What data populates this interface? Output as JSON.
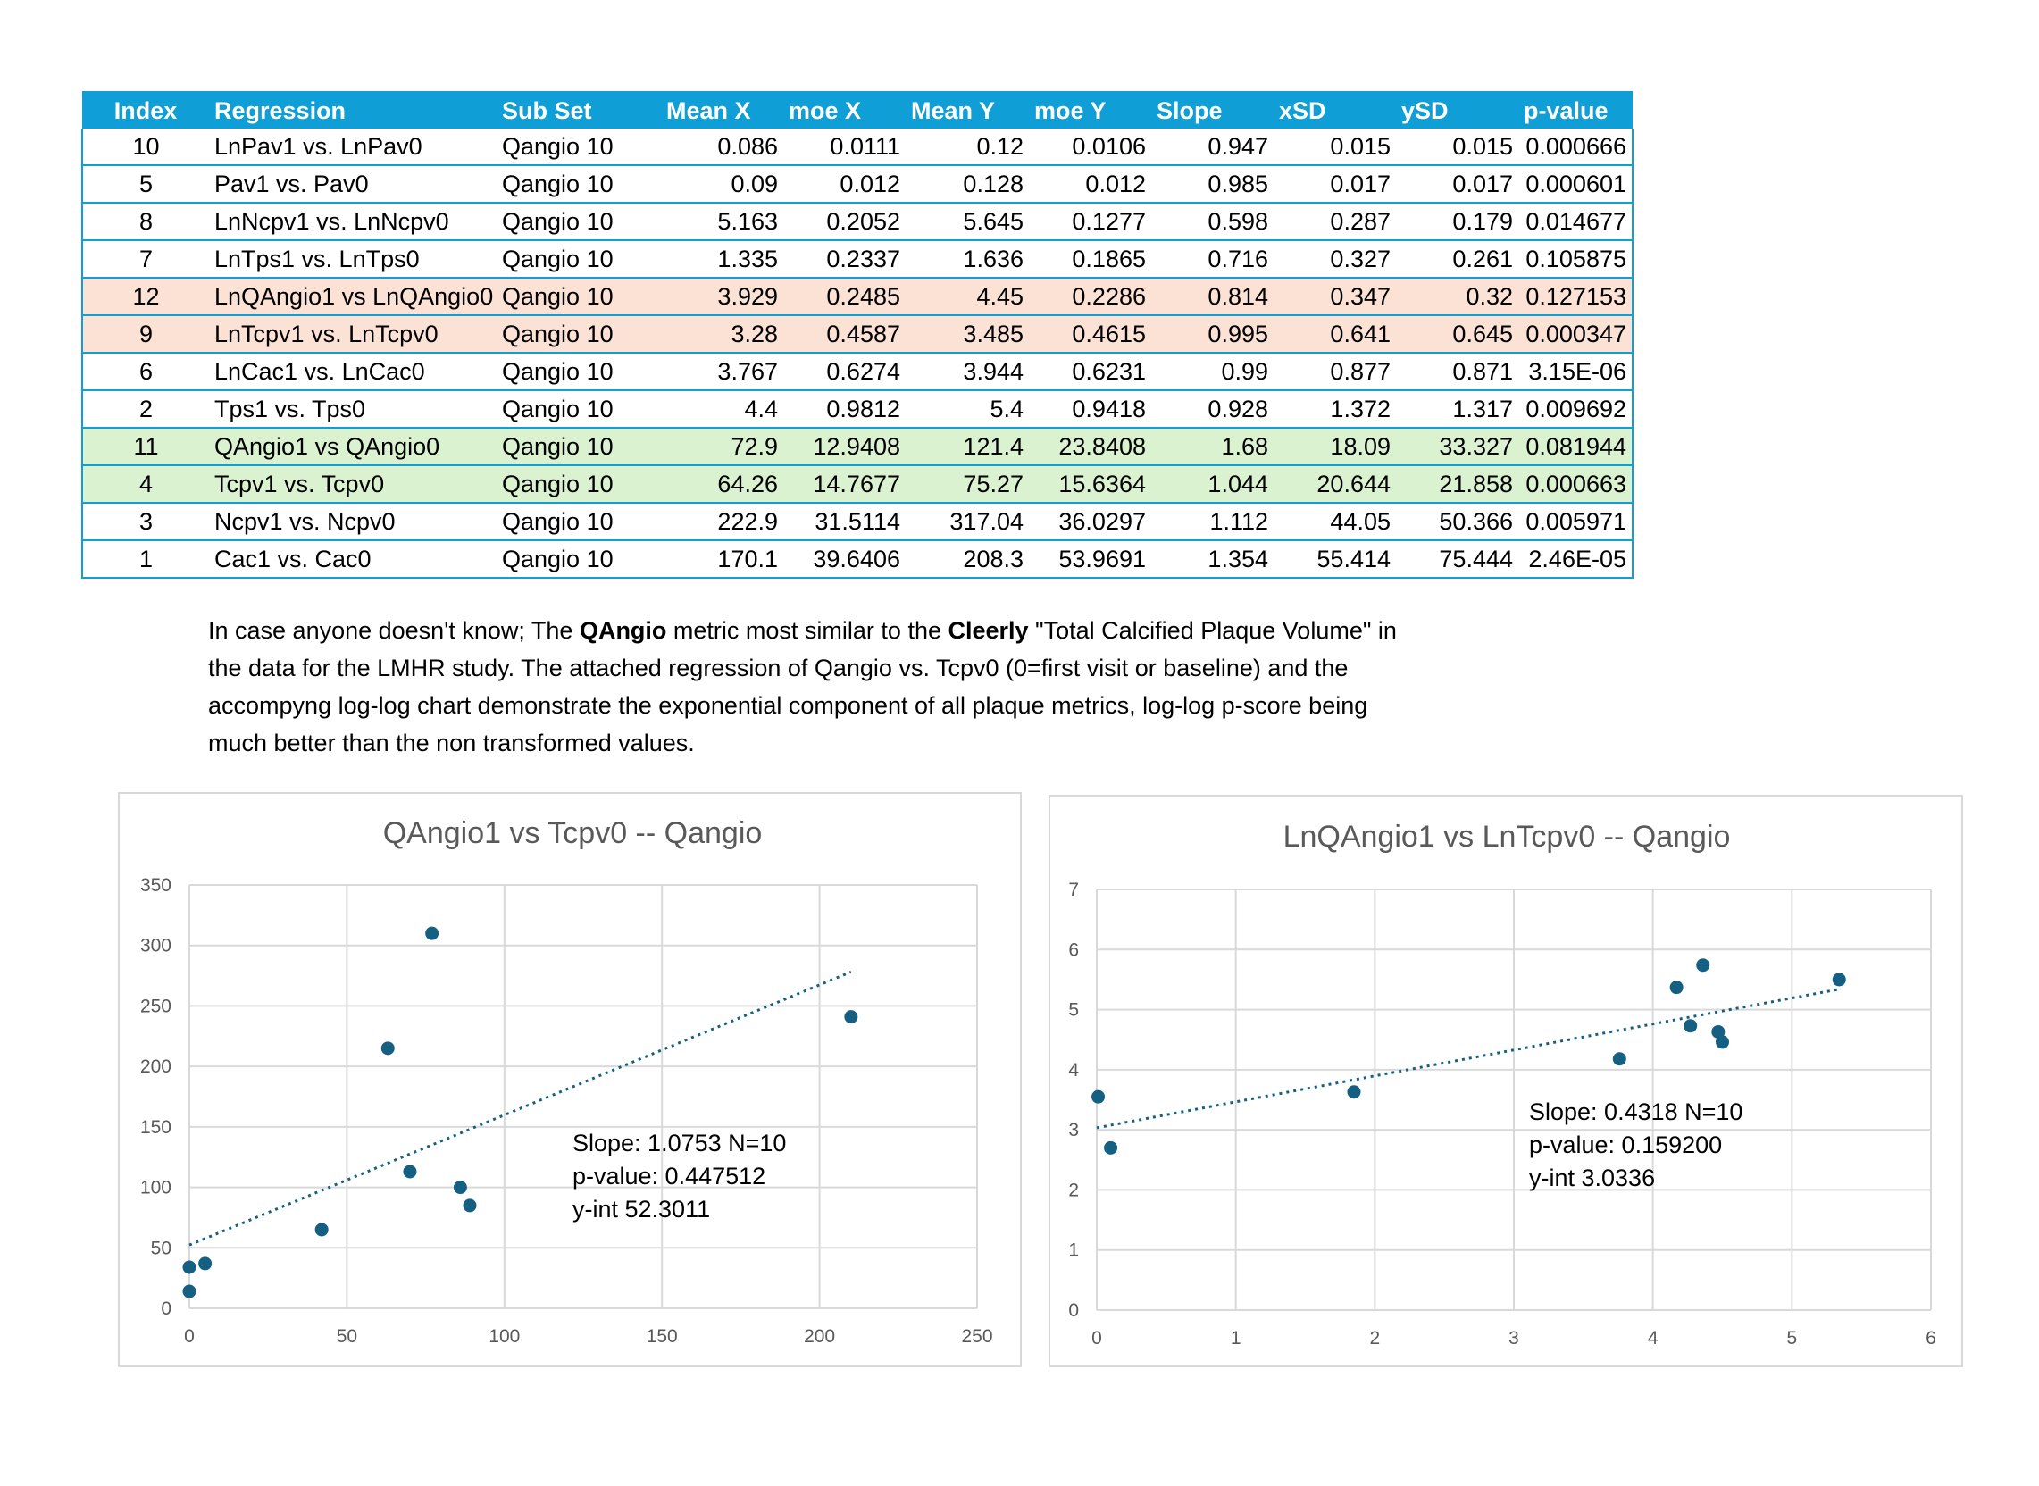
{
  "table": {
    "headers": [
      "Index",
      "Regression",
      "Sub Set",
      "Mean X",
      "moe X",
      "Mean Y",
      "moe Y",
      "Slope",
      "xSD",
      "ySD",
      "p-value"
    ],
    "rows": [
      {
        "highlight": "none",
        "cells": [
          "10",
          "LnPav1 vs. LnPav0",
          "Qangio 10",
          "0.086",
          "0.0111",
          "0.12",
          "0.0106",
          "0.947",
          "0.015",
          "0.015",
          "0.000666"
        ]
      },
      {
        "highlight": "none",
        "cells": [
          "5",
          "Pav1 vs. Pav0",
          "Qangio 10",
          "0.09",
          "0.012",
          "0.128",
          "0.012",
          "0.985",
          "0.017",
          "0.017",
          "0.000601"
        ]
      },
      {
        "highlight": "none",
        "cells": [
          "8",
          "LnNcpv1 vs. LnNcpv0",
          "Qangio 10",
          "5.163",
          "0.2052",
          "5.645",
          "0.1277",
          "0.598",
          "0.287",
          "0.179",
          "0.014677"
        ]
      },
      {
        "highlight": "none",
        "cells": [
          "7",
          "LnTps1 vs. LnTps0",
          "Qangio 10",
          "1.335",
          "0.2337",
          "1.636",
          "0.1865",
          "0.716",
          "0.327",
          "0.261",
          "0.105875"
        ]
      },
      {
        "highlight": "orange",
        "cells": [
          "12",
          "LnQAngio1 vs LnQAngio0",
          "Qangio 10",
          "3.929",
          "0.2485",
          "4.45",
          "0.2286",
          "0.814",
          "0.347",
          "0.32",
          "0.127153"
        ]
      },
      {
        "highlight": "orange",
        "cells": [
          "9",
          "LnTcpv1 vs. LnTcpv0",
          "Qangio 10",
          "3.28",
          "0.4587",
          "3.485",
          "0.4615",
          "0.995",
          "0.641",
          "0.645",
          "0.000347"
        ]
      },
      {
        "highlight": "none",
        "cells": [
          "6",
          "LnCac1 vs. LnCac0",
          "Qangio 10",
          "3.767",
          "0.6274",
          "3.944",
          "0.6231",
          "0.99",
          "0.877",
          "0.871",
          "3.15E-06"
        ]
      },
      {
        "highlight": "none",
        "cells": [
          "2",
          "Tps1 vs. Tps0",
          "Qangio 10",
          "4.4",
          "0.9812",
          "5.4",
          "0.9418",
          "0.928",
          "1.372",
          "1.317",
          "0.009692"
        ]
      },
      {
        "highlight": "green",
        "cells": [
          "11",
          "QAngio1 vs QAngio0",
          "Qangio 10",
          "72.9",
          "12.9408",
          "121.4",
          "23.8408",
          "1.68",
          "18.09",
          "33.327",
          "0.081944"
        ]
      },
      {
        "highlight": "green",
        "cells": [
          "4",
          "Tcpv1 vs. Tcpv0",
          "Qangio 10",
          "64.26",
          "14.7677",
          "75.27",
          "15.6364",
          "1.044",
          "20.644",
          "21.858",
          "0.000663"
        ]
      },
      {
        "highlight": "none",
        "cells": [
          "3",
          "Ncpv1 vs. Ncpv0",
          "Qangio 10",
          "222.9",
          "31.5114",
          "317.04",
          "36.0297",
          "1.112",
          "44.05",
          "50.366",
          "0.005971"
        ]
      },
      {
        "highlight": "none",
        "cells": [
          "1",
          "Cac1 vs. Cac0",
          "Qangio 10",
          "170.1",
          "39.6406",
          "208.3",
          "53.9691",
          "1.354",
          "55.414",
          "75.444",
          "2.46E-05"
        ]
      }
    ]
  },
  "note": {
    "line1_a": "In case anyone doesn't know; The ",
    "line1_b": "QAngio",
    "line1_c": " metric most similar to the ",
    "line1_d": "Cleerly",
    "line1_e": " \"Total Calcified Plaque Volume\" in",
    "line2": "the data for the LMHR study.  The attached regression of  Qangio vs. Tcpv0 (0=first visit or baseline) and the",
    "line3": "accompyng log-log chart demonstrate the exponential component of all plaque metrics,  log-log p-score being",
    "line4": "much better than the non transformed values."
  },
  "colors": {
    "header_bg": "#0f9ed5",
    "highlight_orange": "#fbe2d5",
    "highlight_green": "#daf2d0",
    "marker": "#156082"
  },
  "chart_data": [
    {
      "type": "scatter",
      "title": "QAngio1 vs Tcpv0  -- Qangio",
      "xlabel": "",
      "ylabel": "",
      "xlim": [
        0,
        250
      ],
      "ylim": [
        0,
        350
      ],
      "xticks": [
        0,
        50,
        100,
        150,
        200,
        250
      ],
      "yticks": [
        0,
        50,
        100,
        150,
        200,
        250,
        300,
        350
      ],
      "grid": true,
      "points": [
        [
          0,
          14
        ],
        [
          0,
          34
        ],
        [
          5,
          37
        ],
        [
          42,
          65
        ],
        [
          63,
          215
        ],
        [
          70,
          113
        ],
        [
          77,
          310
        ],
        [
          86,
          100
        ],
        [
          89,
          85
        ],
        [
          210,
          241
        ]
      ],
      "trendline": {
        "slope": 1.0753,
        "intercept": 52.3011,
        "x_range": [
          0,
          210
        ]
      },
      "annotation": [
        "Slope: 1.0753 N=10",
        "p-value: 0.447512",
        "y-int 52.3011"
      ]
    },
    {
      "type": "scatter",
      "title": "LnQAngio1 vs LnTcpv0  -- Qangio",
      "xlabel": "",
      "ylabel": "",
      "xlim": [
        0,
        6
      ],
      "ylim": [
        0,
        7
      ],
      "xticks": [
        0,
        1,
        2,
        3,
        4,
        5,
        6
      ],
      "yticks": [
        0,
        1,
        2,
        3,
        4,
        5,
        6,
        7
      ],
      "grid": true,
      "points": [
        [
          0.01,
          3.55
        ],
        [
          0.1,
          2.7
        ],
        [
          1.85,
          3.63
        ],
        [
          3.76,
          4.18
        ],
        [
          4.17,
          5.37
        ],
        [
          4.27,
          4.73
        ],
        [
          4.36,
          5.74
        ],
        [
          4.47,
          4.63
        ],
        [
          4.5,
          4.46
        ],
        [
          5.34,
          5.5
        ]
      ],
      "trendline": {
        "slope": 0.4318,
        "intercept": 3.0336,
        "x_range": [
          0,
          5.34
        ]
      },
      "annotation": [
        "Slope: 0.4318 N=10",
        "p-value: 0.159200",
        "y-int 3.0336"
      ]
    }
  ]
}
